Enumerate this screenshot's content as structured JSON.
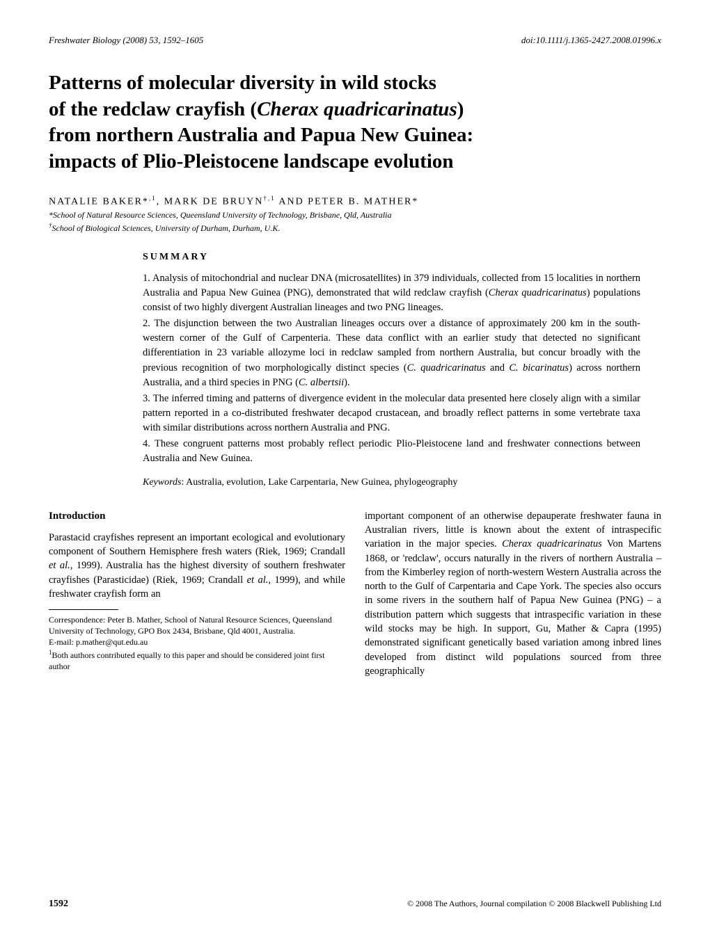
{
  "header": {
    "journal": "Freshwater Biology (2008) 53, 1592–1605",
    "doi": "doi:10.1111/j.1365-2427.2008.01996.x"
  },
  "title_lines": [
    "Patterns of molecular diversity in wild stocks",
    "of the redclaw crayfish (Cherax quadricarinatus)",
    "from northern Australia and Papua New Guinea:",
    "impacts of Plio-Pleistocene landscape evolution"
  ],
  "authors_line": "NATALIE BAKER*,¹, MARK DE BRUYN†,¹ AND PETER B. MATHER*",
  "affiliations": [
    "*School of Natural Resource Sciences, Queensland University of Technology, Brisbane, Qld, Australia",
    "†School of Biological Sciences, University of Durham, Durham, U.K."
  ],
  "summary_heading": "SUMMARY",
  "summary": [
    "1. Analysis of mitochondrial and nuclear DNA (microsatellites) in 379 individuals, collected from 15 localities in northern Australia and Papua New Guinea (PNG), demonstrated that wild redclaw crayfish (Cherax quadricarinatus) populations consist of two highly divergent Australian lineages and two PNG lineages.",
    "2. The disjunction between the two Australian lineages occurs over a distance of approximately 200 km in the south-western corner of the Gulf of Carpenteria. These data conflict with an earlier study that detected no significant differentiation in 23 variable allozyme loci in redclaw sampled from northern Australia, but concur broadly with the previous recognition of two morphologically distinct species (C. quadricarinatus and C. bicarinatus) across northern Australia, and a third species in PNG (C. albertsii).",
    "3. The inferred timing and patterns of divergence evident in the molecular data presented here closely align with a similar pattern reported in a co-distributed freshwater decapod crustacean, and broadly reflect patterns in some vertebrate taxa with similar distributions across northern Australia and PNG.",
    "4. These congruent patterns most probably reflect periodic Plio-Pleistocene land and freshwater connections between Australia and New Guinea."
  ],
  "keywords_label": "Keywords",
  "keywords": ": Australia, evolution, Lake Carpentaria, New Guinea, phylogeography",
  "intro_heading": "Introduction",
  "col_left_para": "Parastacid crayfishes represent an important ecological and evolutionary component of Southern Hemisphere fresh waters (Riek, 1969; Crandall et al., 1999). Australia has the highest diversity of southern freshwater crayfishes (Parasticidae) (Riek, 1969; Crandall et al., 1999), and while freshwater crayfish form an",
  "footnotes": [
    "Correspondence: Peter B. Mather, School of Natural Resource Sciences, Queensland University of Technology, GPO Box 2434, Brisbane, Qld 4001, Australia.",
    "E-mail: p.mather@qut.edu.au",
    "¹Both authors contributed equally to this paper and should be considered joint first author"
  ],
  "col_right_para": "important component of an otherwise depauperate freshwater fauna in Australian rivers, little is known about the extent of intraspecific variation in the major species. Cherax quadricarinatus Von Martens 1868, or 'redclaw', occurs naturally in the rivers of northern Australia – from the Kimberley region of north-western Western Australia across the north to the Gulf of Carpentaria and Cape York. The species also occurs in some rivers in the southern half of Papua New Guinea (PNG) – a distribution pattern which suggests that intraspecific variation in these wild stocks may be high. In support, Gu, Mather & Capra (1995) demonstrated significant genetically based variation among inbred lines developed from distinct wild populations sourced from three geographically",
  "footer": {
    "page": "1592",
    "copyright": "© 2008 The Authors, Journal compilation © 2008 Blackwell Publishing Ltd"
  }
}
